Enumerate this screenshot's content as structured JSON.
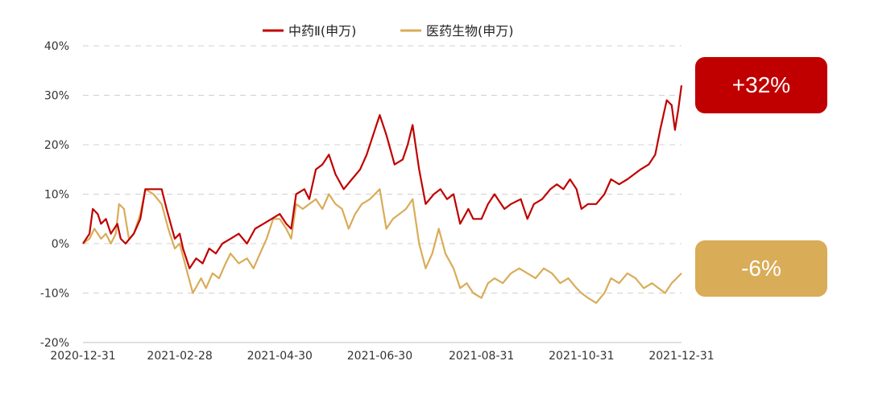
{
  "colors": {
    "series_red": "#c00000",
    "series_gold": "#d9ac58",
    "grid": "#d0d0d0",
    "axis": "#bfbfbf"
  },
  "callouts": [
    {
      "text": "+32%",
      "color": "#c00000"
    },
    {
      "text": "-6%",
      "color": "#d9ac58"
    }
  ],
  "chart_data": {
    "type": "line",
    "title": "",
    "xlabel": "",
    "ylabel": "",
    "ylim": [
      -20,
      40
    ],
    "y_ticks": [
      -20,
      -10,
      0,
      10,
      20,
      30,
      40
    ],
    "y_tick_labels": [
      "-20%",
      "-10%",
      "0%",
      "10%",
      "20%",
      "30%",
      "40%"
    ],
    "x_range": [
      "2020-12-31",
      "2021-12-31"
    ],
    "x_tick_labels": [
      "2020-12-31",
      "2021-02-28",
      "2021-04-30",
      "2021-06-30",
      "2021-08-31",
      "2021-10-31",
      "2021-12-31"
    ],
    "grid": "horizontal dashed",
    "legend_position": "top",
    "series": [
      {
        "name": "中药Ⅱ(申万)",
        "color": "#c00000",
        "points": [
          [
            "2020-12-31",
            0
          ],
          [
            "2021-01-04",
            2
          ],
          [
            "2021-01-06",
            7
          ],
          [
            "2021-01-09",
            6
          ],
          [
            "2021-01-11",
            4
          ],
          [
            "2021-01-14",
            5
          ],
          [
            "2021-01-17",
            2
          ],
          [
            "2021-01-21",
            4
          ],
          [
            "2021-01-23",
            1
          ],
          [
            "2021-01-26",
            0
          ],
          [
            "2021-01-31",
            2
          ],
          [
            "2021-02-04",
            5
          ],
          [
            "2021-02-07",
            11
          ],
          [
            "2021-02-12",
            11
          ],
          [
            "2021-02-17",
            11
          ],
          [
            "2021-02-20",
            7
          ],
          [
            "2021-02-25",
            1
          ],
          [
            "2021-02-28",
            2
          ],
          [
            "2021-03-02",
            -1
          ],
          [
            "2021-03-06",
            -5
          ],
          [
            "2021-03-10",
            -3
          ],
          [
            "2021-03-14",
            -4
          ],
          [
            "2021-03-18",
            -1
          ],
          [
            "2021-03-22",
            -2
          ],
          [
            "2021-03-26",
            0
          ],
          [
            "2021-03-31",
            1
          ],
          [
            "2021-04-05",
            2
          ],
          [
            "2021-04-10",
            0
          ],
          [
            "2021-04-15",
            3
          ],
          [
            "2021-04-20",
            4
          ],
          [
            "2021-04-25",
            5
          ],
          [
            "2021-04-30",
            6
          ],
          [
            "2021-05-04",
            4
          ],
          [
            "2021-05-07",
            3
          ],
          [
            "2021-05-10",
            10
          ],
          [
            "2021-05-15",
            11
          ],
          [
            "2021-05-18",
            9
          ],
          [
            "2021-05-22",
            15
          ],
          [
            "2021-05-26",
            16
          ],
          [
            "2021-05-30",
            18
          ],
          [
            "2021-06-03",
            14
          ],
          [
            "2021-06-08",
            11
          ],
          [
            "2021-06-13",
            13
          ],
          [
            "2021-06-18",
            15
          ],
          [
            "2021-06-22",
            18
          ],
          [
            "2021-06-26",
            22
          ],
          [
            "2021-06-30",
            26
          ],
          [
            "2021-07-04",
            22
          ],
          [
            "2021-07-09",
            16
          ],
          [
            "2021-07-14",
            17
          ],
          [
            "2021-07-17",
            20
          ],
          [
            "2021-07-20",
            24
          ],
          [
            "2021-07-24",
            15
          ],
          [
            "2021-07-28",
            8
          ],
          [
            "2021-08-02",
            10
          ],
          [
            "2021-08-06",
            11
          ],
          [
            "2021-08-10",
            9
          ],
          [
            "2021-08-14",
            10
          ],
          [
            "2021-08-18",
            4
          ],
          [
            "2021-08-23",
            7
          ],
          [
            "2021-08-26",
            5
          ],
          [
            "2021-08-31",
            5
          ],
          [
            "2021-09-04",
            8
          ],
          [
            "2021-09-08",
            10
          ],
          [
            "2021-09-14",
            7
          ],
          [
            "2021-09-18",
            8
          ],
          [
            "2021-09-24",
            9
          ],
          [
            "2021-09-28",
            5
          ],
          [
            "2021-10-02",
            8
          ],
          [
            "2021-10-07",
            9
          ],
          [
            "2021-10-12",
            11
          ],
          [
            "2021-10-16",
            12
          ],
          [
            "2021-10-20",
            11
          ],
          [
            "2021-10-24",
            13
          ],
          [
            "2021-10-28",
            11
          ],
          [
            "2021-10-31",
            7
          ],
          [
            "2021-11-04",
            8
          ],
          [
            "2021-11-09",
            8
          ],
          [
            "2021-11-14",
            10
          ],
          [
            "2021-11-18",
            13
          ],
          [
            "2021-11-23",
            12
          ],
          [
            "2021-11-28",
            13
          ],
          [
            "2021-12-02",
            14
          ],
          [
            "2021-12-06",
            15
          ],
          [
            "2021-12-11",
            16
          ],
          [
            "2021-12-15",
            18
          ],
          [
            "2021-12-18",
            23
          ],
          [
            "2021-12-22",
            29
          ],
          [
            "2021-12-25",
            28
          ],
          [
            "2021-12-27",
            23
          ],
          [
            "2021-12-29",
            27
          ],
          [
            "2021-12-31",
            32
          ]
        ]
      },
      {
        "name": "医药生物(申万)",
        "color": "#d9ac58",
        "points": [
          [
            "2020-12-31",
            0
          ],
          [
            "2021-01-04",
            1
          ],
          [
            "2021-01-07",
            3
          ],
          [
            "2021-01-11",
            1
          ],
          [
            "2021-01-14",
            2
          ],
          [
            "2021-01-17",
            0
          ],
          [
            "2021-01-20",
            2
          ],
          [
            "2021-01-22",
            8
          ],
          [
            "2021-01-25",
            7
          ],
          [
            "2021-01-28",
            1
          ],
          [
            "2021-01-31",
            2
          ],
          [
            "2021-02-04",
            6
          ],
          [
            "2021-02-07",
            11
          ],
          [
            "2021-02-12",
            10
          ],
          [
            "2021-02-17",
            8
          ],
          [
            "2021-02-21",
            3
          ],
          [
            "2021-02-25",
            -1
          ],
          [
            "2021-02-28",
            0
          ],
          [
            "2021-03-04",
            -5
          ],
          [
            "2021-03-08",
            -10
          ],
          [
            "2021-03-13",
            -7
          ],
          [
            "2021-03-16",
            -9
          ],
          [
            "2021-03-20",
            -6
          ],
          [
            "2021-03-24",
            -7
          ],
          [
            "2021-03-28",
            -4
          ],
          [
            "2021-03-31",
            -2
          ],
          [
            "2021-04-05",
            -4
          ],
          [
            "2021-04-10",
            -3
          ],
          [
            "2021-04-14",
            -5
          ],
          [
            "2021-04-18",
            -2
          ],
          [
            "2021-04-22",
            1
          ],
          [
            "2021-04-26",
            5
          ],
          [
            "2021-04-30",
            5
          ],
          [
            "2021-05-04",
            3
          ],
          [
            "2021-05-07",
            1
          ],
          [
            "2021-05-10",
            8
          ],
          [
            "2021-05-14",
            7
          ],
          [
            "2021-05-18",
            8
          ],
          [
            "2021-05-22",
            9
          ],
          [
            "2021-05-26",
            7
          ],
          [
            "2021-05-30",
            10
          ],
          [
            "2021-06-03",
            8
          ],
          [
            "2021-06-07",
            7
          ],
          [
            "2021-06-11",
            3
          ],
          [
            "2021-06-15",
            6
          ],
          [
            "2021-06-19",
            8
          ],
          [
            "2021-06-24",
            9
          ],
          [
            "2021-06-30",
            11
          ],
          [
            "2021-07-04",
            3
          ],
          [
            "2021-07-08",
            5
          ],
          [
            "2021-07-12",
            6
          ],
          [
            "2021-07-16",
            7
          ],
          [
            "2021-07-20",
            9
          ],
          [
            "2021-07-24",
            0
          ],
          [
            "2021-07-28",
            -5
          ],
          [
            "2021-08-01",
            -2
          ],
          [
            "2021-08-05",
            3
          ],
          [
            "2021-08-09",
            -2
          ],
          [
            "2021-08-14",
            -5
          ],
          [
            "2021-08-18",
            -9
          ],
          [
            "2021-08-22",
            -8
          ],
          [
            "2021-08-26",
            -10
          ],
          [
            "2021-08-31",
            -11
          ],
          [
            "2021-09-04",
            -8
          ],
          [
            "2021-09-08",
            -7
          ],
          [
            "2021-09-13",
            -8
          ],
          [
            "2021-09-18",
            -6
          ],
          [
            "2021-09-23",
            -5
          ],
          [
            "2021-09-28",
            -6
          ],
          [
            "2021-10-03",
            -7
          ],
          [
            "2021-10-08",
            -5
          ],
          [
            "2021-10-13",
            -6
          ],
          [
            "2021-10-18",
            -8
          ],
          [
            "2021-10-23",
            -7
          ],
          [
            "2021-10-28",
            -9
          ],
          [
            "2021-10-31",
            -10
          ],
          [
            "2021-11-04",
            -11
          ],
          [
            "2021-11-09",
            -12
          ],
          [
            "2021-11-14",
            -10
          ],
          [
            "2021-11-18",
            -7
          ],
          [
            "2021-11-23",
            -8
          ],
          [
            "2021-11-28",
            -6
          ],
          [
            "2021-12-03",
            -7
          ],
          [
            "2021-12-08",
            -9
          ],
          [
            "2021-12-13",
            -8
          ],
          [
            "2021-12-17",
            -9
          ],
          [
            "2021-12-21",
            -10
          ],
          [
            "2021-12-25",
            -8
          ],
          [
            "2021-12-28",
            -7
          ],
          [
            "2021-12-31",
            -6
          ]
        ]
      }
    ]
  }
}
